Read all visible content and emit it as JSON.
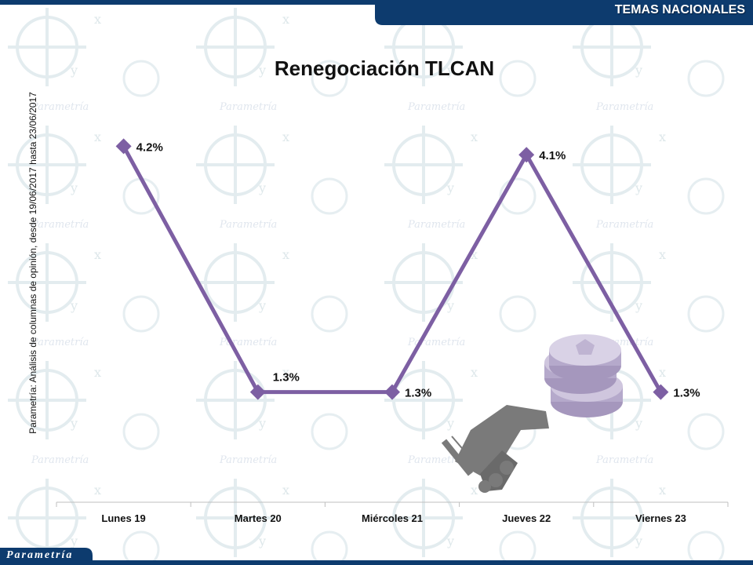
{
  "header": {
    "section_label": "TEMAS NACIONALES",
    "banner_color": "#0d3b6e"
  },
  "side_note": "Parametría: Análisis de columnas de opinión, desde 19/06/2017 hasta 23/06/2017",
  "footer": {
    "logo_text": "Parametría"
  },
  "colors": {
    "line": "#7d5fa3",
    "axis": "#bfbfbf",
    "coin": "#c8bfd8",
    "hands": "#7a7a7a"
  },
  "illustration": {
    "coins_icon": "coin-stack-icon",
    "handshake_icon": "handshake-icon"
  },
  "chart_data": {
    "type": "line",
    "title": "Renegociación TLCAN",
    "categories": [
      "Lunes 19",
      "Martes 20",
      "Miércoles 21",
      "Jueves 22",
      "Viernes 23"
    ],
    "series": [
      {
        "values": [
          4.2,
          1.3,
          1.3,
          4.1,
          1.3
        ]
      }
    ],
    "data_labels": [
      "4.2%",
      "1.3%",
      "1.3%",
      "4.1%",
      "1.3%"
    ],
    "ylim": [
      0,
      5
    ],
    "grid": false,
    "legend": "none"
  }
}
